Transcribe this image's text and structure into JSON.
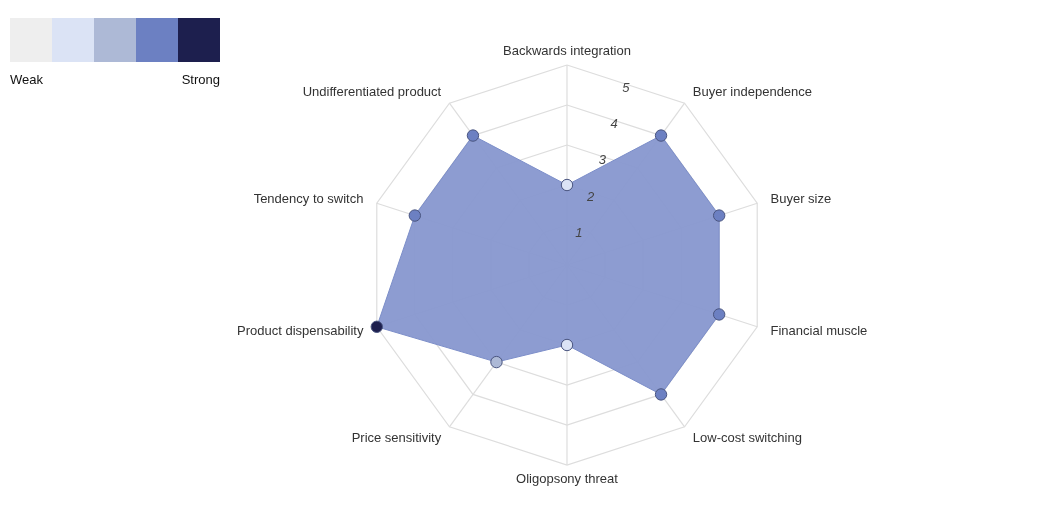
{
  "chart_data": {
    "type": "radar",
    "categories": [
      "Backwards integration",
      "Buyer independence",
      "Buyer size",
      "Financial muscle",
      "Low-cost switching",
      "Oligopsony threat",
      "Price sensitivity",
      "Product dispensability",
      "Tendency to switch",
      "Undifferentiated product"
    ],
    "series": [
      {
        "color": "#8797cf",
        "values": [
          2,
          4,
          4,
          4,
          4,
          2,
          3,
          5,
          4,
          4
        ],
        "colors": [
          "#dbe3f5",
          "#6c80c2",
          "#6c80c2",
          "#6c80c2",
          "#6c80c2",
          "#dbe3f5",
          "#adb9d6",
          "#1d1f4e",
          "#6c80c2",
          "#6c80c2"
        ]
      }
    ],
    "ylim": [
      0,
      5
    ],
    "yticks": [
      1,
      2,
      3,
      4,
      5
    ],
    "annotations": [
      "Weak",
      "Strong"
    ],
    "marker": "circle",
    "grid": true
  }
}
